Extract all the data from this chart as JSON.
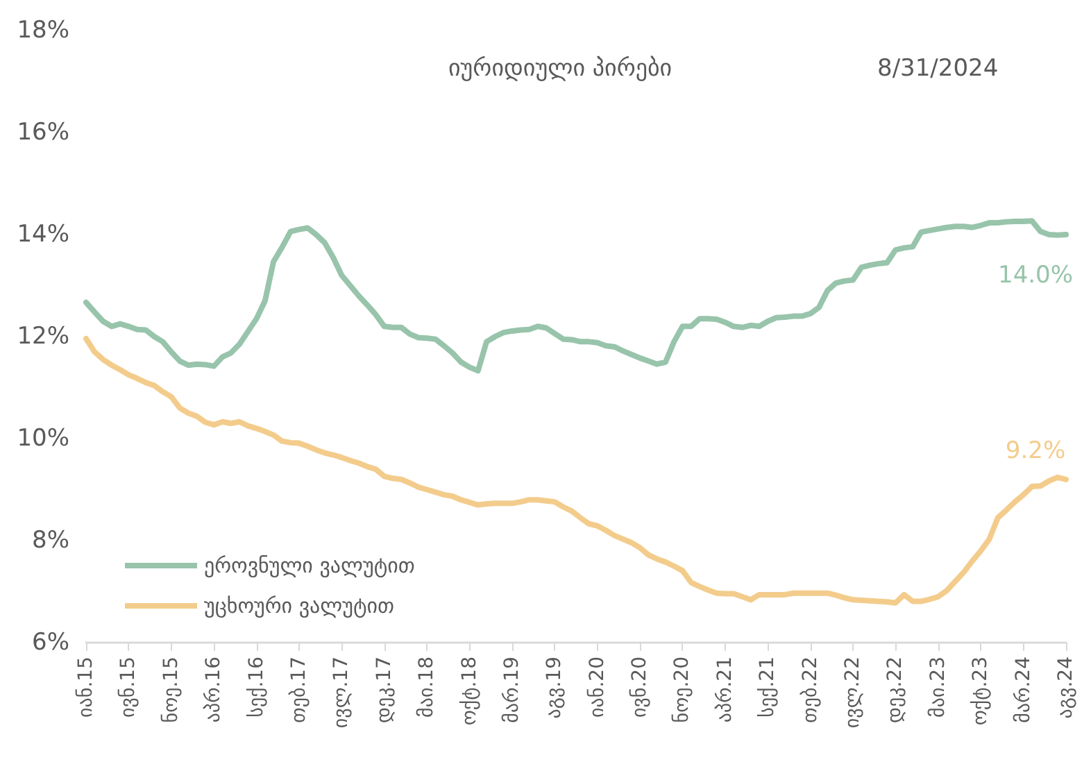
{
  "chart_data": {
    "type": "line",
    "title": "იურიდიული პირები",
    "subtitle": "8/31/2024",
    "categories": [
      "იან.15",
      null,
      null,
      null,
      null,
      "ივნ.15",
      null,
      null,
      null,
      null,
      "ნოე.15",
      null,
      null,
      null,
      null,
      "აპრ.16",
      null,
      null,
      null,
      null,
      "სექ.16",
      null,
      null,
      null,
      null,
      "თებ.17",
      null,
      null,
      null,
      null,
      "ივლ.17",
      null,
      null,
      null,
      null,
      "დეკ.17",
      null,
      null,
      null,
      null,
      "მაი.18",
      null,
      null,
      null,
      null,
      "ოქტ.18",
      null,
      null,
      null,
      null,
      "მარ.19",
      null,
      null,
      null,
      null,
      "აგვ.19",
      null,
      null,
      null,
      null,
      "იან.20",
      null,
      null,
      null,
      null,
      "ივნ.20",
      null,
      null,
      null,
      null,
      "ნოე.20",
      null,
      null,
      null,
      null,
      "აპრ.21",
      null,
      null,
      null,
      null,
      "სექ.21",
      null,
      null,
      null,
      null,
      "თებ.22",
      null,
      null,
      null,
      null,
      "ივლ.22",
      null,
      null,
      null,
      null,
      "დეკ.22",
      null,
      null,
      null,
      null,
      "მაი.23",
      null,
      null,
      null,
      null,
      "ოქტ.23",
      null,
      null,
      null,
      null,
      "მარ.24",
      null,
      null,
      null,
      null,
      "აგვ.24"
    ],
    "series": [
      {
        "name": "ეროვნული ვალუტით",
        "color": "#98c4ab",
        "values": [
          12.67,
          12.48,
          12.3,
          12.2,
          12.25,
          12.2,
          12.14,
          12.13,
          12.0,
          11.9,
          11.7,
          11.52,
          11.44,
          11.46,
          11.45,
          11.42,
          11.6,
          11.68,
          11.85,
          12.1,
          12.35,
          12.7,
          13.47,
          13.75,
          14.06,
          14.1,
          14.13,
          14.0,
          13.84,
          13.55,
          13.2,
          13.0,
          12.8,
          12.62,
          12.43,
          12.2,
          12.18,
          12.18,
          12.05,
          11.98,
          11.97,
          11.95,
          11.82,
          11.68,
          11.5,
          11.4,
          11.33,
          11.9,
          12.0,
          12.08,
          12.11,
          12.13,
          12.14,
          12.2,
          12.17,
          12.06,
          11.95,
          11.94,
          11.9,
          11.9,
          11.88,
          11.82,
          11.8,
          11.72,
          11.65,
          11.58,
          11.52,
          11.46,
          11.5,
          11.9,
          12.2,
          12.2,
          12.35,
          12.35,
          12.34,
          12.28,
          12.2,
          12.18,
          12.22,
          12.2,
          12.3,
          12.37,
          12.38,
          12.4,
          12.4,
          12.45,
          12.57,
          12.9,
          13.05,
          13.09,
          13.11,
          13.36,
          13.4,
          13.43,
          13.45,
          13.7,
          13.74,
          13.76,
          14.05,
          14.08,
          14.11,
          14.14,
          14.16,
          14.16,
          14.14,
          14.18,
          14.23,
          14.23,
          14.25,
          14.26,
          14.26,
          14.27,
          14.06,
          14.0,
          13.99,
          14.0
        ],
        "value_labels": [
          null,
          null,
          null,
          null,
          null,
          null,
          null,
          null,
          null,
          null,
          null,
          null,
          null,
          null,
          null,
          null,
          null,
          null,
          null,
          null,
          null,
          null,
          null,
          null,
          null,
          null,
          null,
          null,
          null,
          null,
          null,
          null,
          null,
          null,
          null,
          null,
          null,
          null,
          null,
          null,
          null,
          null,
          null,
          null,
          null,
          null,
          null,
          null,
          null,
          null,
          null,
          null,
          null,
          null,
          null,
          null,
          null,
          null,
          null,
          null,
          null,
          null,
          null,
          null,
          null,
          null,
          null,
          null,
          null,
          null,
          null,
          null,
          null,
          null,
          null,
          null,
          null,
          null,
          null,
          null,
          null,
          null,
          null,
          null,
          null,
          null,
          null,
          null,
          null,
          null,
          null,
          null,
          null,
          null,
          null,
          null,
          null,
          null,
          null,
          null,
          null,
          null,
          null,
          null,
          null,
          null,
          null,
          null,
          null,
          null,
          null,
          null,
          null,
          null,
          null,
          "14.0%"
        ]
      },
      {
        "name": "უცხოური ვალუტით",
        "color": "#f3cc8c",
        "values": [
          11.96,
          11.7,
          11.55,
          11.44,
          11.35,
          11.25,
          11.18,
          11.1,
          11.04,
          10.92,
          10.82,
          10.6,
          10.5,
          10.44,
          10.32,
          10.27,
          10.33,
          10.3,
          10.33,
          10.25,
          10.2,
          10.14,
          10.07,
          9.95,
          9.92,
          9.91,
          9.85,
          9.78,
          9.72,
          9.68,
          9.63,
          9.57,
          9.52,
          9.45,
          9.4,
          9.26,
          9.22,
          9.2,
          9.13,
          9.05,
          9.0,
          8.95,
          8.9,
          8.87,
          8.8,
          8.75,
          8.7,
          8.72,
          8.73,
          8.73,
          8.73,
          8.76,
          8.8,
          8.8,
          8.78,
          8.76,
          8.66,
          8.58,
          8.45,
          8.33,
          8.29,
          8.2,
          8.1,
          8.03,
          7.96,
          7.86,
          7.72,
          7.64,
          7.58,
          7.5,
          7.41,
          7.18,
          7.1,
          7.03,
          6.97,
          6.96,
          6.96,
          6.9,
          6.84,
          6.94,
          6.94,
          6.94,
          6.94,
          6.97,
          6.97,
          6.97,
          6.97,
          6.97,
          6.93,
          6.88,
          6.84,
          6.83,
          6.82,
          6.81,
          6.8,
          6.78,
          6.94,
          6.81,
          6.81,
          6.85,
          6.9,
          7.02,
          7.2,
          7.38,
          7.6,
          7.8,
          8.03,
          8.45,
          8.6,
          8.76,
          8.9,
          9.06,
          9.07,
          9.17,
          9.24,
          9.2
        ],
        "value_labels": [
          null,
          null,
          null,
          null,
          null,
          null,
          null,
          null,
          null,
          null,
          null,
          null,
          null,
          null,
          null,
          null,
          null,
          null,
          null,
          null,
          null,
          null,
          null,
          null,
          null,
          null,
          null,
          null,
          null,
          null,
          null,
          null,
          null,
          null,
          null,
          null,
          null,
          null,
          null,
          null,
          null,
          null,
          null,
          null,
          null,
          null,
          null,
          null,
          null,
          null,
          null,
          null,
          null,
          null,
          null,
          null,
          null,
          null,
          null,
          null,
          null,
          null,
          null,
          null,
          null,
          null,
          null,
          null,
          null,
          null,
          null,
          null,
          null,
          null,
          null,
          null,
          null,
          null,
          null,
          null,
          null,
          null,
          null,
          null,
          null,
          null,
          null,
          null,
          null,
          null,
          null,
          null,
          null,
          null,
          null,
          null,
          null,
          null,
          null,
          null,
          null,
          null,
          null,
          null,
          null,
          null,
          null,
          null,
          null,
          null,
          null,
          null,
          null,
          null,
          null,
          "9.2%"
        ]
      }
    ],
    "ylim": [
      6,
      18
    ],
    "yticks": [
      {
        "value": 6,
        "label": "6%"
      },
      {
        "value": 8,
        "label": "8%"
      },
      {
        "value": 10,
        "label": "10%"
      },
      {
        "value": 12,
        "label": "12%"
      },
      {
        "value": 14,
        "label": "14%"
      },
      {
        "value": 16,
        "label": "16%"
      },
      {
        "value": 18,
        "label": "18%"
      }
    ],
    "legend": "bottom left",
    "grid": false,
    "marker": "none",
    "line_style": "solid"
  }
}
